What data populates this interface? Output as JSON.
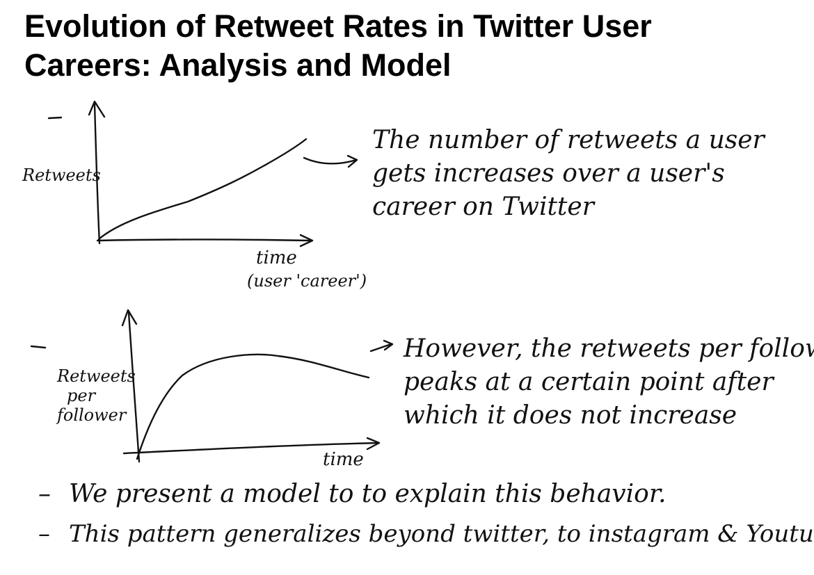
{
  "title": {
    "line1": "Evolution of Retweet Rates in Twitter User",
    "line2": "Careers: Analysis and Model"
  },
  "figure_top": {
    "ylabel": "Retweets",
    "xlabel_line1": "time",
    "xlabel_line2": "(user 'career')",
    "note_lines": [
      "The number of retweets a user",
      "gets increases over a user's",
      "career on Twitter"
    ]
  },
  "figure_bottom": {
    "ylabel_lines": [
      "Retweets",
      "per",
      "follower"
    ],
    "xlabel": "time",
    "note_lines": [
      "However, the retweets per follower",
      "peaks at a certain point after",
      "which it does not increase"
    ]
  },
  "bullets": [
    "We present a model to to explain this behavior.",
    "This pattern generalizes beyond twitter, to instagram & Youtube."
  ],
  "colors": {
    "ink": "#111111",
    "background": "#ffffff"
  }
}
